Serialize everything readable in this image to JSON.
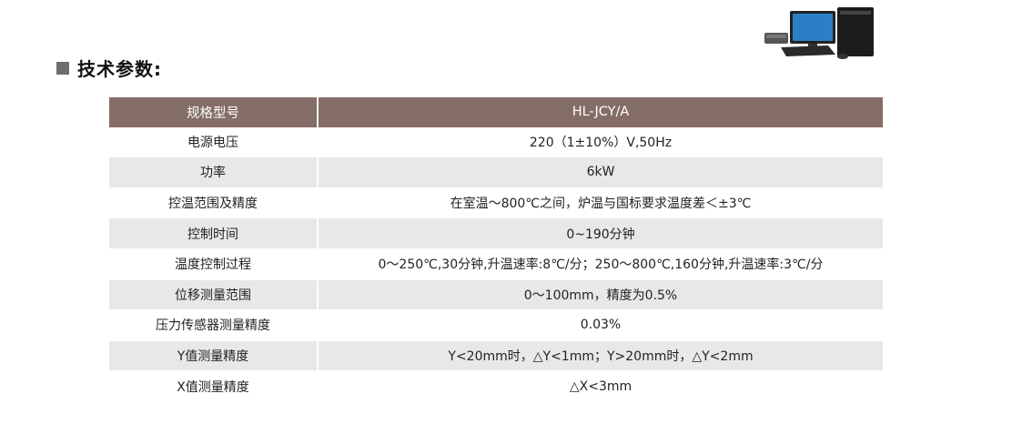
{
  "heading": "技术参数:",
  "image": {
    "icon": "desktop-computer-icon"
  },
  "colors": {
    "header_bg": "#846d66",
    "alt_row_bg": "#e8e8e8",
    "bullet": "#6e6e6e"
  },
  "table": {
    "header": {
      "key": "规格型号",
      "value": "HL-JCY/A"
    },
    "rows": [
      {
        "key": "电源电压",
        "value": "220（1±10%）V,50Hz"
      },
      {
        "key": "功率",
        "value": "6kW"
      },
      {
        "key": "控温范围及精度",
        "value": "在室温～800℃之间，炉温与国标要求温度差＜±3℃"
      },
      {
        "key": "控制时间",
        "value": "0~190分钟"
      },
      {
        "key": "温度控制过程",
        "value": "0～250℃,30分钟,升温速率:8℃/分；250～800℃,160分钟,升温速率:3℃/分"
      },
      {
        "key": "位移测量范围",
        "value": "0～100mm，精度为0.5%"
      },
      {
        "key": "压力传感器测量精度",
        "value": "0.03%"
      },
      {
        "key": "Y值测量精度",
        "value": "Y<20mm时，△Y<1mm；Y>20mm时，△Y<2mm"
      },
      {
        "key": "X值测量精度",
        "value": "△X<3mm"
      }
    ]
  }
}
